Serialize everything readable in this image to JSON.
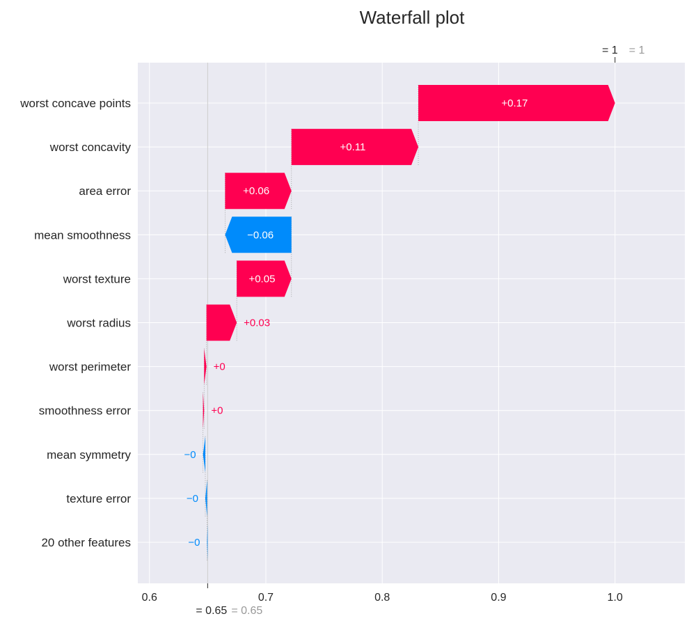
{
  "chart_data": {
    "type": "waterfall",
    "title": "Waterfall plot",
    "base_value": 0.65,
    "base_label": "= 0.65",
    "base_label_gray": "= 0.65",
    "final_value": 1.0,
    "final_label": "= 1",
    "final_label_gray": "= 1",
    "xlim": [
      0.59,
      1.06
    ],
    "x_ticks": [
      0.6,
      0.7,
      0.8,
      0.9,
      1.0
    ],
    "x_tick_labels": [
      "0.6",
      "0.7",
      "0.8",
      "0.9",
      "1.0"
    ],
    "grid": true,
    "features": [
      {
        "name": "worst concave points",
        "value": 0.17,
        "label": "+0.17",
        "start": 0.831,
        "end": 1.0
      },
      {
        "name": "worst concavity",
        "value": 0.11,
        "label": "+0.11",
        "start": 0.722,
        "end": 0.831
      },
      {
        "name": "area error",
        "value": 0.06,
        "label": "+0.06",
        "start": 0.665,
        "end": 0.722
      },
      {
        "name": "mean smoothness",
        "value": -0.06,
        "label": "−0.06",
        "start": 0.722,
        "end": 0.665
      },
      {
        "name": "worst texture",
        "value": 0.05,
        "label": "+0.05",
        "start": 0.675,
        "end": 0.722
      },
      {
        "name": "worst radius",
        "value": 0.03,
        "label": "+0.03",
        "start": 0.649,
        "end": 0.675
      },
      {
        "name": "worst perimeter",
        "value": 0.0,
        "label": "+0",
        "start": 0.647,
        "end": 0.649
      },
      {
        "name": "smoothness error",
        "value": 0.0,
        "label": "+0",
        "start": 0.646,
        "end": 0.647
      },
      {
        "name": "mean symmetry",
        "value": -0.0,
        "label": "−0",
        "start": 0.648,
        "end": 0.646
      },
      {
        "name": "texture error",
        "value": -0.0,
        "label": "−0",
        "start": 0.6495,
        "end": 0.648
      },
      {
        "name": "20 other features",
        "value": -0.0,
        "label": "−0",
        "start": 0.65,
        "end": 0.6495
      }
    ],
    "colors": {
      "positive": "#ff0051",
      "negative": "#008bfb",
      "background": "#eaeaf2",
      "grid": "#ffffff",
      "text": "#262626",
      "gray_text": "#999999"
    }
  }
}
